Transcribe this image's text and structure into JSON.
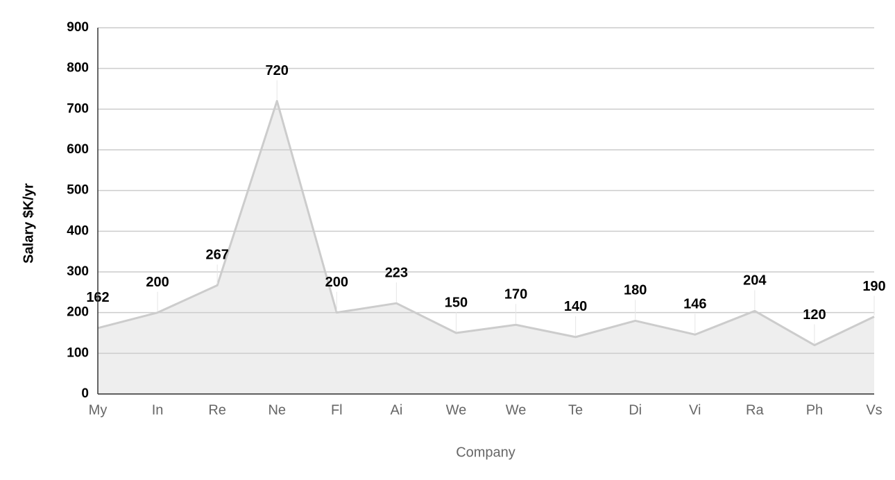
{
  "chart_data": {
    "type": "area",
    "x_label": "Company",
    "y_label": "Salary $K/yr",
    "categories": [
      "My",
      "In",
      "Re",
      "Ne",
      "Fl",
      "Ai",
      "We",
      "We",
      "Te",
      "Di",
      "Vi",
      "Ra",
      "Ph",
      "Vs"
    ],
    "values": [
      162,
      200,
      267,
      720,
      200,
      223,
      150,
      170,
      140,
      180,
      146,
      204,
      120,
      190
    ],
    "color": "#cccccc",
    "ylim": [
      0,
      900
    ],
    "yticks": [
      0,
      100,
      200,
      300,
      400,
      500,
      600,
      700,
      800,
      900
    ],
    "grid": true
  }
}
